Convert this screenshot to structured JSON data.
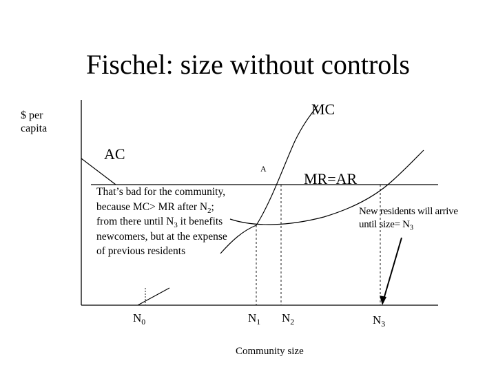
{
  "title": "Fischel: size without controls",
  "y_axis_label_line1": "$ per",
  "y_axis_label_line2": "capita",
  "x_axis_label": "Community size",
  "curves": {
    "mc": "MC",
    "ac": "AC",
    "mr_ar": "MR=AR"
  },
  "point_a": "A",
  "ticks": [
    {
      "base": "N",
      "sub": "0"
    },
    {
      "base": "N",
      "sub": "1"
    },
    {
      "base": "N",
      "sub": "2"
    },
    {
      "base": "N",
      "sub": "3"
    }
  ],
  "note_left": {
    "t1": "That’s bad for the community, because MC> MR after N",
    "s1": "2",
    "t2": "; from there until N",
    "s2": "3",
    "t3": " it benefits newcomers, but at the expense of previous residents"
  },
  "note_right": {
    "t1": "New residents will arrive until size= N",
    "s1": "3"
  },
  "colors": {
    "ink": "#000000",
    "background": "#ffffff"
  }
}
